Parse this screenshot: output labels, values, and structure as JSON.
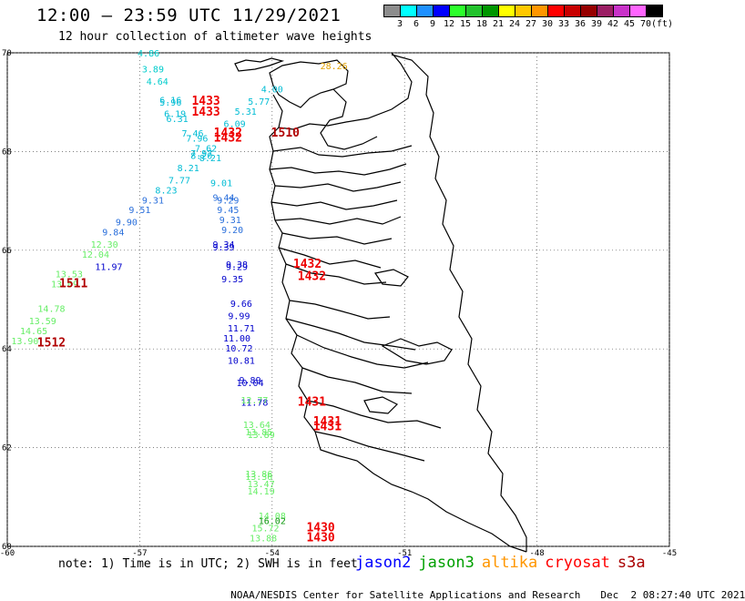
{
  "header": {
    "title": "12:00 – 23:59 UTC 11/29/2021",
    "subtitle": "12 hour collection of altimeter wave heights"
  },
  "legend": {
    "colors": [
      "#8c8c8c",
      "#00ffff",
      "#1e90ff",
      "#0000ff",
      "#2cff2c",
      "#22c22c",
      "#009600",
      "#ffff00",
      "#ffc800",
      "#ff9600",
      "#ff0000",
      "#c80000",
      "#960000",
      "#9b1e64",
      "#c832c8",
      "#ff64ff",
      "#000000"
    ],
    "labels": [
      "3",
      "6",
      "9",
      "12",
      "15",
      "18",
      "21",
      "24",
      "27",
      "30",
      "33",
      "36",
      "39",
      "42",
      "45",
      "70"
    ],
    "unit": "(ft)"
  },
  "axes": {
    "lat_ticks": [
      "70",
      "68",
      "66",
      "64",
      "62",
      "60"
    ],
    "lon_ticks": [
      "-60",
      "-57",
      "-54",
      "-51",
      "-48",
      "-45"
    ]
  },
  "chart_data": {
    "type": "scatter",
    "lon_range": [
      -60,
      -45
    ],
    "lat_range": [
      60,
      70
    ],
    "grid": true,
    "groups": [
      {
        "name": "jason2",
        "color": "#00cccc",
        "points": [
          [
            -56.8,
            69.93,
            "4.86"
          ],
          [
            -56.7,
            69.6,
            "3.89"
          ],
          [
            -56.6,
            69.35,
            "4.64"
          ]
        ]
      },
      {
        "name": "jason2",
        "color": "#00bcd4",
        "points": [
          [
            -56.3,
            68.98,
            "6.16"
          ],
          [
            -56.3,
            68.93,
            "5.96"
          ],
          [
            -56.2,
            68.7,
            "6.19"
          ],
          [
            -56.15,
            68.6,
            "6.31"
          ],
          [
            -54.0,
            69.2,
            "4.00"
          ],
          [
            -54.3,
            68.95,
            "5.77"
          ],
          [
            -54.6,
            68.75,
            "5.31"
          ],
          [
            -54.85,
            68.5,
            "6.09"
          ],
          [
            -55.8,
            68.3,
            "7.46"
          ],
          [
            -55.7,
            68.2,
            "7.96"
          ],
          [
            -55.5,
            68.0,
            "7.62"
          ],
          [
            -55.6,
            67.9,
            "7.97"
          ],
          [
            -55.6,
            67.85,
            "8.20"
          ],
          [
            -55.4,
            67.8,
            "8.21"
          ],
          [
            -55.9,
            67.6,
            "8.21"
          ],
          [
            -56.1,
            67.35,
            "7.77"
          ],
          [
            -56.4,
            67.15,
            "8.23"
          ],
          [
            -55.15,
            67.3,
            "9.01"
          ]
        ]
      },
      {
        "name": "jason2",
        "color": "#2a6fdb",
        "points": [
          [
            -55.1,
            67.0,
            "9.44"
          ],
          [
            -56.7,
            66.95,
            "9.31"
          ],
          [
            -57.0,
            66.75,
            "9.51"
          ],
          [
            -57.3,
            66.5,
            "9.90"
          ],
          [
            -57.6,
            66.3,
            "9.84"
          ],
          [
            -55.0,
            66.95,
            "9.29"
          ],
          [
            -55.0,
            66.75,
            "9.45"
          ],
          [
            -54.95,
            66.55,
            "9.31"
          ],
          [
            -54.9,
            66.35,
            "9.20"
          ]
        ]
      },
      {
        "name": "jason2",
        "color": "#0000cc",
        "points": [
          [
            -55.1,
            66.05,
            "9.34"
          ],
          [
            -55.1,
            66.0,
            "9.39"
          ],
          [
            -54.8,
            65.65,
            "9.38"
          ],
          [
            -54.8,
            65.6,
            "9.29"
          ],
          [
            -54.9,
            65.35,
            "9.35"
          ],
          [
            -54.7,
            64.85,
            "9.66"
          ],
          [
            -54.75,
            64.6,
            "9.99"
          ],
          [
            -54.7,
            64.35,
            "11.71"
          ],
          [
            -54.8,
            64.15,
            "11.00"
          ],
          [
            -54.75,
            63.95,
            "10.72"
          ],
          [
            -54.7,
            63.7,
            "10.81"
          ],
          [
            -54.5,
            63.3,
            "9.89"
          ],
          [
            -54.5,
            63.25,
            "10.04"
          ],
          [
            -54.4,
            62.85,
            "11.78"
          ],
          [
            -57.7,
            65.6,
            "11.97"
          ]
        ]
      },
      {
        "name": "jason3",
        "color": "#66ee66",
        "points": [
          [
            -57.8,
            66.05,
            "12.30"
          ],
          [
            -58.0,
            65.85,
            "12.04"
          ],
          [
            -58.6,
            65.45,
            "13.53"
          ],
          [
            -58.7,
            65.25,
            "13.09"
          ],
          [
            -59.0,
            64.75,
            "14.78"
          ],
          [
            -59.2,
            64.5,
            "13.59"
          ],
          [
            -59.4,
            64.3,
            "14.65"
          ],
          [
            -59.6,
            64.1,
            "13.90"
          ],
          [
            -54.4,
            62.9,
            "12.77"
          ],
          [
            -54.35,
            62.4,
            "13.64"
          ],
          [
            -54.3,
            62.25,
            "13.85"
          ],
          [
            -54.25,
            62.2,
            "13.89"
          ],
          [
            -54.3,
            61.4,
            "13.86"
          ],
          [
            -54.3,
            61.35,
            "13.36"
          ],
          [
            -54.25,
            61.2,
            "13.47"
          ],
          [
            -54.25,
            61.05,
            "14.19"
          ],
          [
            -54.0,
            60.55,
            "14.08"
          ],
          [
            -54.0,
            60.45,
            "16.02"
          ],
          [
            -54.15,
            60.3,
            "15.72"
          ],
          [
            -54.2,
            60.1,
            "13.88"
          ]
        ]
      },
      {
        "name": "jason3",
        "color": "#229922",
        "points": [
          [
            -54.0,
            60.45,
            "16.02"
          ]
        ]
      },
      {
        "name": "altika",
        "color": "#e0a000",
        "points": [
          [
            -52.6,
            69.67,
            "28.26"
          ]
        ]
      },
      {
        "name": "cryosat",
        "color": "#ee0000",
        "points": [
          [
            -55.5,
            68.95,
            "1433"
          ],
          [
            -55.5,
            68.73,
            "1433"
          ],
          [
            -55.0,
            68.3,
            "1432"
          ],
          [
            -55.0,
            68.2,
            "1432"
          ],
          [
            -53.2,
            65.65,
            "1432"
          ],
          [
            -53.1,
            65.4,
            "1432"
          ],
          [
            -53.1,
            62.85,
            "1431"
          ],
          [
            -52.75,
            62.45,
            "1431"
          ],
          [
            -52.75,
            62.35,
            "1431"
          ],
          [
            -52.9,
            60.3,
            "1430"
          ],
          [
            -52.9,
            60.1,
            "1430"
          ]
        ]
      },
      {
        "name": "s3a",
        "color": "#b00000",
        "points": [
          [
            -53.7,
            68.3,
            "1510"
          ],
          [
            -58.5,
            65.25,
            "1511"
          ],
          [
            -59.0,
            64.05,
            "1512"
          ]
        ]
      }
    ]
  },
  "footer": {
    "note": "note: 1) Time is in UTC; 2) SWH is in feet",
    "satellites": [
      {
        "label": "jason2",
        "color": "#0000ff"
      },
      {
        "label": "jason3",
        "color": "#00a000"
      },
      {
        "label": "altika",
        "color": "#ff9600"
      },
      {
        "label": "cryosat",
        "color": "#ff0000"
      },
      {
        "label": "s3a",
        "color": "#aa0000"
      }
    ],
    "credit": "NOAA/NESDIS Center for Satellite Applications and Research",
    "timestamp": "Dec  2 08:27:40 UTC 2021"
  }
}
